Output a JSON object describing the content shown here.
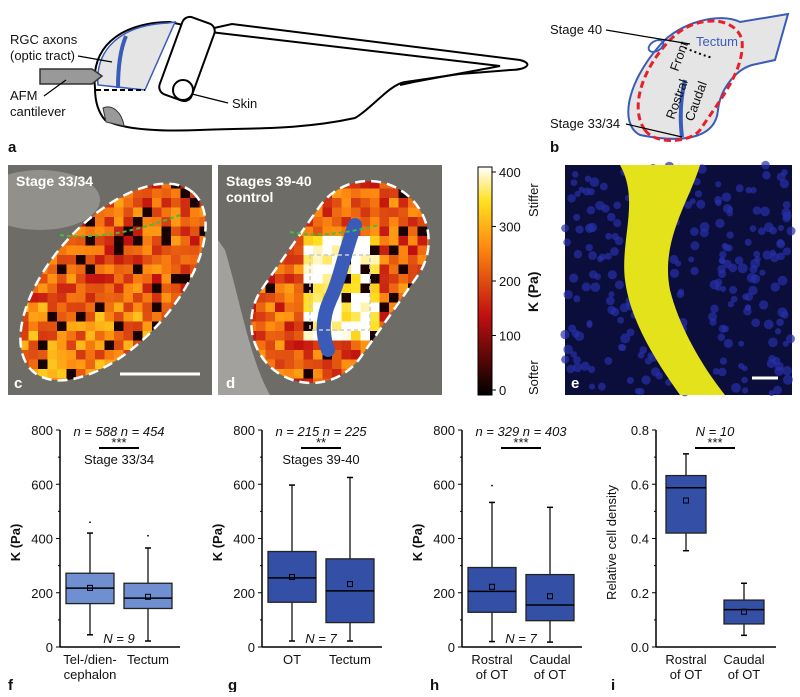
{
  "panel_labels": {
    "a": "a",
    "b": "b",
    "c": "c",
    "d": "d",
    "e": "e",
    "f": "f",
    "g": "g",
    "h": "h",
    "i": "i"
  },
  "panel_a": {
    "rgc_line1": "RGC axons",
    "rgc_line2": "(optic tract)",
    "afm_line1": "AFM",
    "afm_line2": "cantilever",
    "skin": "Skin"
  },
  "panel_b": {
    "stage40": "Stage 40",
    "stage3334": "Stage 33/34",
    "tectum": "Tectum",
    "rostral": "Rostral",
    "front": "Front",
    "caudal": "Caudal"
  },
  "panel_c": {
    "title": "Stage 33/34"
  },
  "panel_d": {
    "title_line1": "Stages 39-40",
    "title_line2": "control"
  },
  "colorbar": {
    "ticks": [
      "400",
      "300",
      "200",
      "100",
      "0"
    ],
    "label": "K (Pa)",
    "top": "Stiffer",
    "bottom": "Softer"
  },
  "colors": {
    "box_light": "#6f8fd0",
    "box_dark": "#3450a6",
    "tract": "#3a5bb8",
    "dashed_red": "#e8202a"
  },
  "chart_data": [
    {
      "type": "box",
      "panel": "f",
      "ylabel": "K (Pa)",
      "ylim": [
        0,
        800
      ],
      "yticks": [
        "0",
        "200",
        "400",
        "600",
        "800"
      ],
      "n_label": "n = 588 n = 454",
      "sig": "***",
      "subtitle": "Stage 33/34",
      "N_label": "N = 9",
      "categories": [
        [
          "Tel-/dien-",
          "cephalon"
        ],
        [
          "Tectum",
          ""
        ]
      ],
      "boxes": [
        {
          "min": 45,
          "q1": 160,
          "median": 217,
          "q3": 272,
          "max": 420,
          "mean": 218,
          "outliers": [
            460
          ]
        },
        {
          "min": 22,
          "q1": 142,
          "median": 180,
          "q3": 235,
          "max": 365,
          "mean": 185,
          "outliers": [
            410
          ]
        }
      ],
      "color": "light"
    },
    {
      "type": "box",
      "panel": "g",
      "ylabel": "K (Pa)",
      "ylim": [
        0,
        800
      ],
      "yticks": [
        "0",
        "200",
        "400",
        "600",
        "800"
      ],
      "n_label": "n = 215 n = 225",
      "sig": "**",
      "subtitle": "Stages 39-40",
      "N_label": "N = 7",
      "categories": [
        [
          "OT",
          ""
        ],
        [
          "Tectum",
          ""
        ]
      ],
      "boxes": [
        {
          "min": 22,
          "q1": 165,
          "median": 255,
          "q3": 352,
          "max": 597,
          "mean": 258,
          "outliers": []
        },
        {
          "min": 22,
          "q1": 90,
          "median": 207,
          "q3": 325,
          "max": 625,
          "mean": 232,
          "outliers": []
        }
      ],
      "color": "dark"
    },
    {
      "type": "box",
      "panel": "h",
      "ylabel": "K (Pa)",
      "ylim": [
        0,
        800
      ],
      "yticks": [
        "0",
        "200",
        "400",
        "600",
        "800"
      ],
      "n_label": "n = 329 n = 403",
      "sig": "***",
      "subtitle": "",
      "N_label": "N = 7",
      "categories": [
        [
          "Rostral",
          "of OT"
        ],
        [
          "Caudal",
          "of OT"
        ]
      ],
      "boxes": [
        {
          "min": 20,
          "q1": 128,
          "median": 205,
          "q3": 293,
          "max": 533,
          "mean": 222,
          "outliers": [
            595
          ]
        },
        {
          "min": 18,
          "q1": 97,
          "median": 155,
          "q3": 267,
          "max": 515,
          "mean": 187,
          "outliers": []
        }
      ],
      "color": "dark"
    },
    {
      "type": "box",
      "panel": "i",
      "ylabel": "Relative cell density",
      "ylim": [
        0,
        0.8
      ],
      "yticks": [
        "0.0",
        "0.2",
        "0.4",
        "0.6",
        "0.8"
      ],
      "n_label": "N = 10",
      "sig": "***",
      "subtitle": "",
      "N_label": "",
      "categories": [
        [
          "Rostral",
          "of OT"
        ],
        [
          "Caudal",
          "of OT"
        ]
      ],
      "boxes": [
        {
          "min": 0.355,
          "q1": 0.42,
          "median": 0.587,
          "q3": 0.632,
          "max": 0.712,
          "mean": 0.54,
          "outliers": []
        },
        {
          "min": 0.043,
          "q1": 0.085,
          "median": 0.138,
          "q3": 0.173,
          "max": 0.235,
          "mean": 0.13,
          "outliers": []
        }
      ],
      "color": "dark"
    }
  ]
}
